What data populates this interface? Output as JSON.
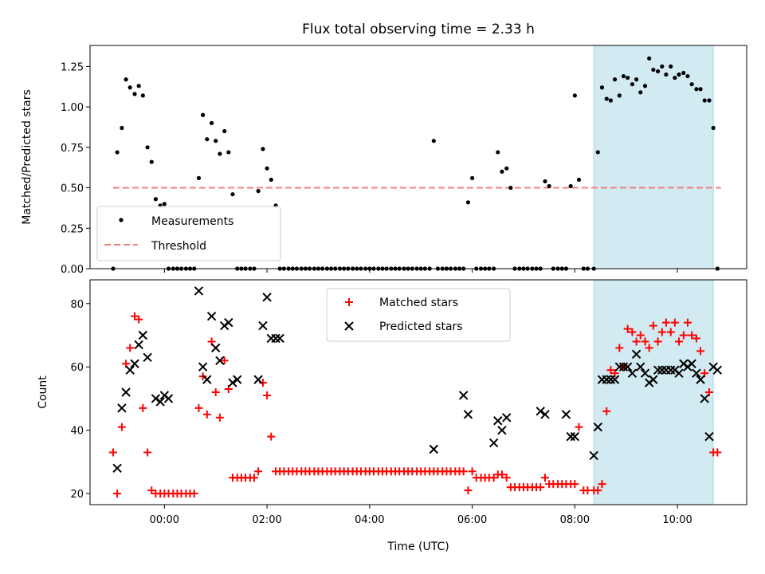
{
  "chart_data": [
    {
      "type": "scatter",
      "title": "Flux total observing time = 2.33 h",
      "xlabel": "",
      "ylabel": "Matched/Predicted stars",
      "ylim": [
        0,
        1.38
      ],
      "yticks": [
        "0.00",
        "0.25",
        "0.50",
        "0.75",
        "1.00",
        "1.25"
      ],
      "shaded_interval": [
        8.37,
        10.7
      ],
      "shade_color": "#add8e6",
      "threshold": {
        "name": "Threshold",
        "value": 0.5,
        "x_range": [
          -1.0,
          10.85
        ],
        "color": "#f08080"
      },
      "legend_position": "lower-left",
      "series": [
        {
          "name": "Measurements",
          "color": "#000000",
          "x": [
            -1.0,
            -0.92,
            -0.83,
            -0.75,
            -0.67,
            -0.58,
            -0.5,
            -0.42,
            -0.33,
            -0.25,
            -0.17,
            -0.08,
            0.0,
            0.08,
            0.17,
            0.25,
            0.33,
            0.42,
            0.5,
            0.58,
            0.67,
            0.75,
            0.83,
            0.92,
            1.0,
            1.08,
            1.17,
            1.25,
            1.33,
            1.42,
            1.5,
            1.58,
            1.67,
            1.75,
            1.83,
            1.92,
            2.0,
            2.08,
            2.17,
            2.25,
            2.33,
            2.42,
            2.5,
            2.58,
            2.67,
            2.75,
            2.83,
            2.92,
            3.0,
            3.08,
            3.17,
            3.25,
            3.33,
            3.42,
            3.5,
            3.58,
            3.67,
            3.75,
            3.83,
            3.92,
            4.0,
            4.08,
            4.17,
            4.25,
            4.33,
            4.42,
            4.5,
            4.58,
            4.67,
            4.75,
            4.83,
            4.92,
            5.0,
            5.08,
            5.17,
            5.25,
            5.33,
            5.42,
            5.5,
            5.58,
            5.67,
            5.75,
            5.83,
            5.92,
            6.0,
            6.08,
            6.17,
            6.25,
            6.33,
            6.42,
            6.5,
            6.58,
            6.67,
            6.75,
            6.83,
            6.92,
            7.0,
            7.08,
            7.17,
            7.25,
            7.33,
            7.42,
            7.5,
            7.58,
            7.67,
            7.75,
            7.83,
            7.92,
            8.0,
            8.08,
            8.17,
            8.25,
            8.37,
            8.45,
            8.53,
            8.62,
            8.7,
            8.78,
            8.87,
            8.95,
            9.03,
            9.12,
            9.2,
            9.28,
            9.37,
            9.45,
            9.53,
            9.62,
            9.7,
            9.78,
            9.87,
            9.95,
            10.03,
            10.12,
            10.2,
            10.28,
            10.37,
            10.45,
            10.53,
            10.62,
            10.7,
            10.78
          ],
          "y": [
            0.0,
            0.72,
            0.87,
            1.17,
            1.12,
            1.08,
            1.13,
            1.07,
            0.75,
            0.66,
            0.43,
            0.39,
            0.4,
            0.0,
            0.0,
            0.0,
            0.0,
            0.0,
            0.0,
            0.0,
            0.56,
            0.95,
            0.8,
            0.9,
            0.79,
            0.71,
            0.85,
            0.72,
            0.46,
            0.0,
            0.0,
            0.0,
            0.0,
            0.0,
            0.48,
            0.74,
            0.62,
            0.55,
            0.39,
            0.0,
            0.0,
            0.0,
            0.0,
            0.0,
            0.0,
            0.0,
            0.0,
            0.0,
            0.0,
            0.0,
            0.0,
            0.0,
            0.0,
            0.0,
            0.0,
            0.0,
            0.0,
            0.0,
            0.0,
            0.0,
            0.0,
            0.0,
            0.0,
            0.0,
            0.0,
            0.0,
            0.0,
            0.0,
            0.0,
            0.0,
            0.0,
            0.0,
            0.0,
            0.0,
            0.0,
            0.79,
            0.0,
            0.0,
            0.0,
            0.0,
            0.0,
            0.0,
            0.0,
            0.41,
            0.56,
            0.0,
            0.0,
            0.0,
            0.0,
            0.0,
            0.72,
            0.6,
            0.62,
            0.5,
            0.0,
            0.0,
            0.0,
            0.0,
            0.0,
            0.0,
            0.0,
            0.54,
            0.51,
            0.0,
            0.0,
            0.0,
            0.0,
            0.51,
            1.07,
            0.55,
            0.0,
            0.0,
            0.0,
            0.72,
            1.12,
            1.05,
            1.04,
            1.17,
            1.07,
            1.19,
            1.18,
            1.14,
            1.17,
            1.09,
            1.13,
            1.3,
            1.23,
            1.22,
            1.25,
            1.2,
            1.25,
            1.18,
            1.2,
            1.21,
            1.19,
            1.14,
            1.11,
            1.11,
            1.04,
            1.04,
            0.87,
            0.0
          ]
        }
      ]
    },
    {
      "type": "scatter",
      "title": "",
      "xlabel": "Time (UTC)",
      "ylabel": "Count",
      "xlim": [
        -1.45,
        11.35
      ],
      "xticks": [
        0,
        2,
        4,
        6,
        8,
        10
      ],
      "xtick_labels": [
        "00:00",
        "02:00",
        "04:00",
        "06:00",
        "08:00",
        "10:00"
      ],
      "ylim": [
        16.5,
        87.5
      ],
      "yticks": [
        "20",
        "40",
        "60",
        "80"
      ],
      "shaded_interval": [
        8.37,
        10.7
      ],
      "shade_color": "#add8e6",
      "legend_position": "upper-center",
      "series": [
        {
          "name": "Matched stars",
          "marker": "+",
          "color": "#ff0000",
          "x": [
            -1.0,
            -0.92,
            -0.83,
            -0.75,
            -0.67,
            -0.58,
            -0.5,
            -0.42,
            -0.33,
            -0.25,
            -0.17,
            -0.08,
            0.0,
            0.08,
            0.17,
            0.25,
            0.33,
            0.42,
            0.5,
            0.58,
            0.67,
            0.75,
            0.83,
            0.92,
            1.0,
            1.08,
            1.17,
            1.25,
            1.33,
            1.42,
            1.5,
            1.58,
            1.67,
            1.75,
            1.83,
            1.92,
            2.0,
            2.08,
            2.17,
            2.25,
            2.33,
            2.42,
            2.5,
            2.58,
            2.67,
            2.75,
            2.83,
            2.92,
            3.0,
            3.08,
            3.17,
            3.25,
            3.33,
            3.42,
            3.5,
            3.58,
            3.67,
            3.75,
            3.83,
            3.92,
            4.0,
            4.08,
            4.17,
            4.25,
            4.33,
            4.42,
            4.5,
            4.58,
            4.67,
            4.75,
            4.83,
            4.92,
            5.0,
            5.08,
            5.17,
            5.25,
            5.33,
            5.42,
            5.5,
            5.58,
            5.67,
            5.75,
            5.83,
            5.92,
            6.0,
            6.08,
            6.17,
            6.25,
            6.33,
            6.42,
            6.5,
            6.58,
            6.67,
            6.75,
            6.83,
            6.92,
            7.0,
            7.08,
            7.17,
            7.25,
            7.33,
            7.42,
            7.5,
            7.58,
            7.67,
            7.75,
            7.83,
            7.92,
            8.0,
            8.08,
            8.17,
            8.25,
            8.37,
            8.45,
            8.53,
            8.62,
            8.7,
            8.78,
            8.87,
            8.95,
            9.03,
            9.12,
            9.2,
            9.28,
            9.37,
            9.45,
            9.53,
            9.62,
            9.7,
            9.78,
            9.87,
            9.95,
            10.03,
            10.12,
            10.2,
            10.28,
            10.37,
            10.45,
            10.53,
            10.62,
            10.7,
            10.78
          ],
          "y": [
            33,
            20,
            41,
            61,
            66,
            76,
            75,
            47,
            33,
            21,
            20,
            20,
            20,
            20,
            20,
            20,
            20,
            20,
            20,
            20,
            47,
            57,
            45,
            68,
            52,
            44,
            62,
            53,
            25,
            25,
            25,
            25,
            25,
            25,
            27,
            55,
            51,
            38,
            27,
            27,
            27,
            27,
            27,
            27,
            27,
            27,
            27,
            27,
            27,
            27,
            27,
            27,
            27,
            27,
            27,
            27,
            27,
            27,
            27,
            27,
            27,
            27,
            27,
            27,
            27,
            27,
            27,
            27,
            27,
            27,
            27,
            27,
            27,
            27,
            27,
            27,
            27,
            27,
            27,
            27,
            27,
            27,
            27,
            21,
            27,
            25,
            25,
            25,
            25,
            25,
            26,
            26,
            25,
            22,
            22,
            22,
            22,
            22,
            22,
            22,
            22,
            25,
            23,
            23,
            23,
            23,
            23,
            23,
            23,
            41,
            21,
            21,
            21,
            21,
            23,
            46,
            59,
            58,
            66,
            60,
            72,
            71,
            68,
            70,
            68,
            66,
            73,
            68,
            71,
            74,
            71,
            74,
            68,
            70,
            74,
            70,
            69,
            65,
            58,
            52,
            33,
            33
          ]
        },
        {
          "name": "Predicted stars",
          "marker": "x",
          "color": "#000000",
          "x": [
            -0.92,
            -0.83,
            -0.75,
            -0.67,
            -0.58,
            -0.5,
            -0.42,
            -0.33,
            -0.17,
            -0.08,
            0.0,
            0.08,
            0.67,
            0.75,
            0.83,
            0.92,
            1.0,
            1.08,
            1.17,
            1.25,
            1.33,
            1.42,
            1.83,
            1.92,
            2.0,
            2.08,
            2.17,
            2.25,
            5.25,
            5.83,
            5.92,
            6.42,
            6.5,
            6.58,
            6.67,
            7.33,
            7.42,
            7.83,
            7.92,
            8.0,
            8.37,
            8.45,
            8.53,
            8.62,
            8.7,
            8.78,
            8.87,
            8.95,
            9.03,
            9.12,
            9.2,
            9.28,
            9.37,
            9.45,
            9.53,
            9.62,
            9.7,
            9.78,
            9.87,
            9.95,
            10.03,
            10.12,
            10.2,
            10.28,
            10.37,
            10.45,
            10.53,
            10.62,
            10.7,
            10.78
          ],
          "y": [
            28,
            47,
            52,
            59,
            61,
            67,
            70,
            63,
            50,
            49,
            51,
            50,
            84,
            60,
            56,
            76,
            66,
            62,
            73,
            74,
            55,
            56,
            56,
            73,
            82,
            69,
            69,
            69,
            34,
            51,
            45,
            36,
            43,
            40,
            44,
            46,
            45,
            45,
            38,
            38,
            32,
            41,
            56,
            56,
            56,
            56,
            60,
            60,
            60,
            58,
            64,
            60,
            58,
            55,
            56,
            59,
            59,
            59,
            59,
            59,
            58,
            61,
            60,
            61,
            58,
            56,
            50,
            38,
            60,
            59
          ]
        }
      ]
    }
  ]
}
